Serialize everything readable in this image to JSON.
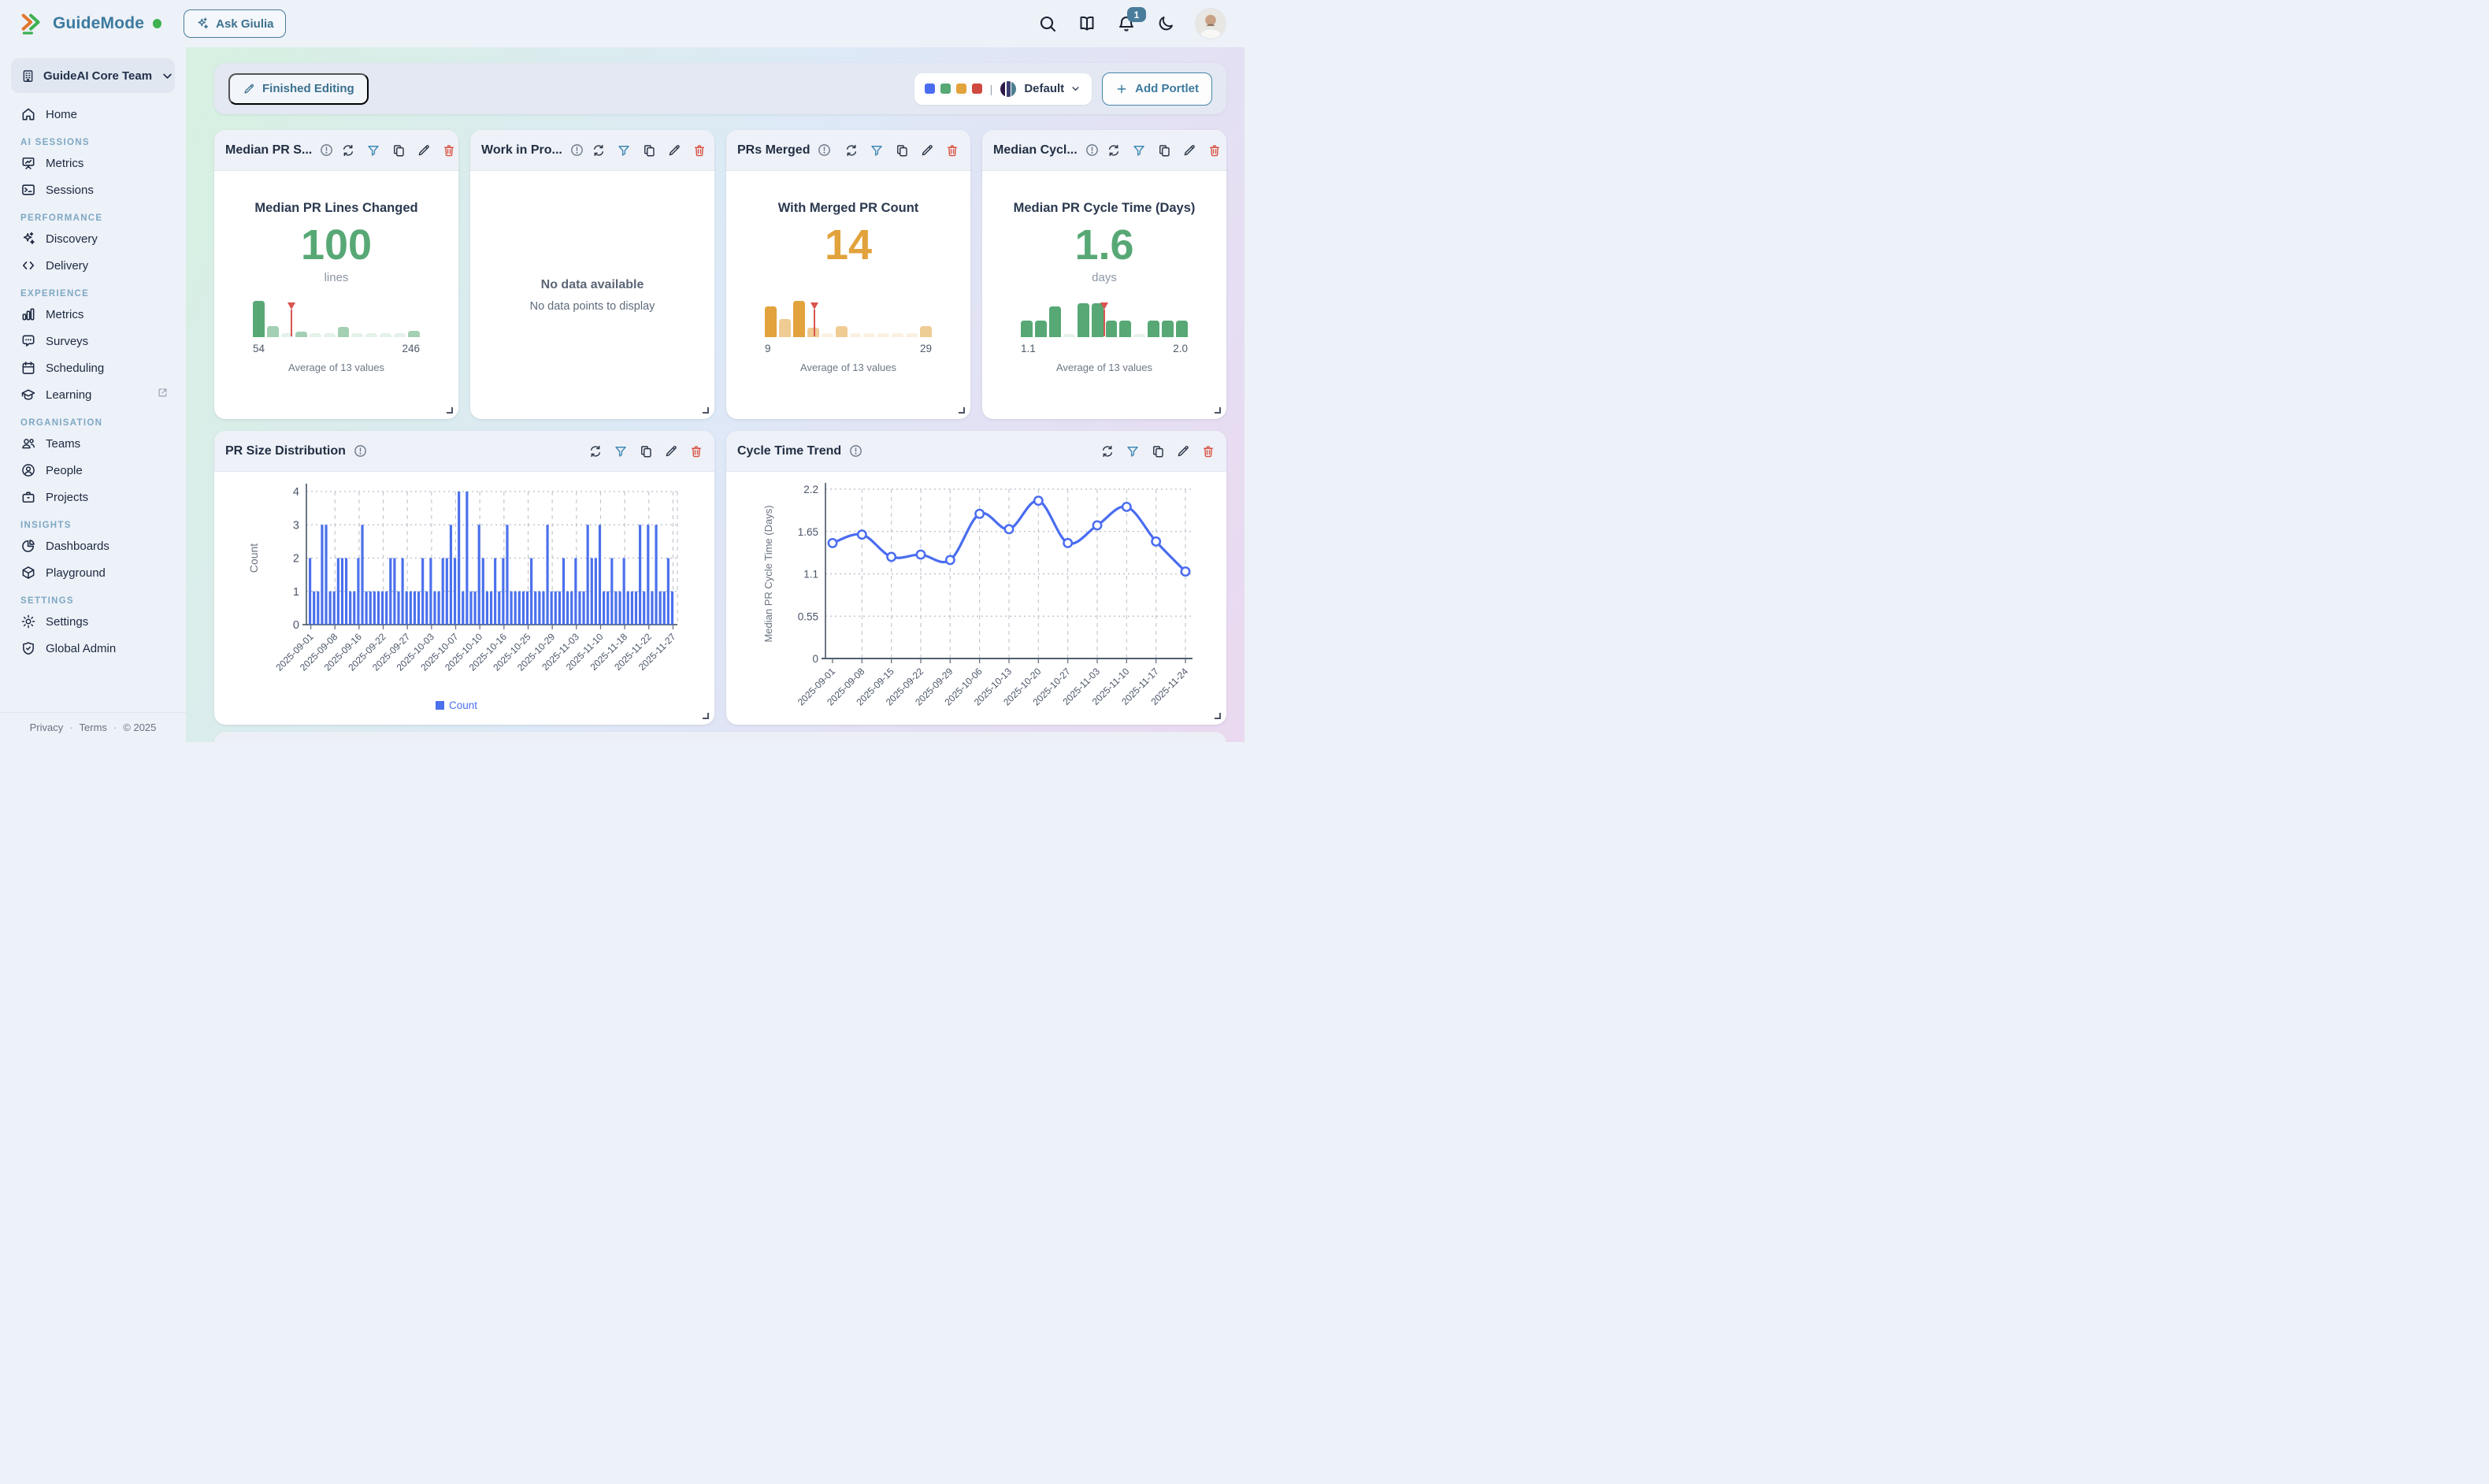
{
  "header": {
    "brand": "GuideMode",
    "ask_label": "Ask Giulia",
    "notification_badge": "1",
    "accent_blue": "#3c7aa0",
    "logo_orange": "#e0772c",
    "logo_green": "#3cb14e"
  },
  "sidebar": {
    "team": "GuideAI Core Team",
    "home": {
      "label": "Home",
      "icon": "home-icon"
    },
    "sections": [
      {
        "title": "AI SESSIONS",
        "items": [
          {
            "label": "Metrics",
            "icon": "board"
          },
          {
            "label": "Sessions",
            "icon": "terminal"
          }
        ]
      },
      {
        "title": "PERFORMANCE",
        "items": [
          {
            "label": "Discovery",
            "icon": "sparkles"
          },
          {
            "label": "Delivery",
            "icon": "code"
          }
        ]
      },
      {
        "title": "EXPERIENCE",
        "items": [
          {
            "label": "Metrics",
            "icon": "bars"
          },
          {
            "label": "Surveys",
            "icon": "chat"
          },
          {
            "label": "Scheduling",
            "icon": "calendar"
          },
          {
            "label": "Learning",
            "icon": "grad",
            "external": true
          }
        ]
      },
      {
        "title": "ORGANISATION",
        "items": [
          {
            "label": "Teams",
            "icon": "users"
          },
          {
            "label": "People",
            "icon": "person"
          },
          {
            "label": "Projects",
            "icon": "briefcase"
          }
        ]
      },
      {
        "title": "INSIGHTS",
        "items": [
          {
            "label": "Dashboards",
            "icon": "pie"
          },
          {
            "label": "Playground",
            "icon": "cube"
          }
        ]
      },
      {
        "title": "SETTINGS",
        "items": [
          {
            "label": "Settings",
            "icon": "gear"
          },
          {
            "label": "Global Admin",
            "icon": "shield"
          }
        ]
      }
    ],
    "footer": {
      "privacy": "Privacy",
      "terms": "Terms",
      "copyright": "© 2025",
      "dot": "·"
    }
  },
  "toolbar": {
    "finished_editing": "Finished Editing",
    "palette_swatches": [
      "#4a6cf0",
      "#57a875",
      "#e2a23c",
      "#d0493f"
    ],
    "palette_separator": "|",
    "palette_pie": [
      "#2e1a47",
      "#3d3f72",
      "#4e7f8e"
    ],
    "palette_name": "Default",
    "add_portlet": "Add Portlet"
  },
  "portlets": [
    {
      "title": "Median PR S...",
      "type": "kpi",
      "kpi": {
        "label": "Median PR Lines Changed",
        "value": "100",
        "unit": "lines",
        "color": "#57a875",
        "min": "54",
        "max": "246",
        "avg": "Average of 13 values",
        "marker_pct": 23,
        "bars": [
          {
            "h": 1,
            "t": "s"
          },
          {
            "h": 0.3,
            "t": "m"
          },
          {
            "h": 0.1,
            "t": "f"
          },
          {
            "h": 0.14,
            "t": "m"
          },
          {
            "h": 0.1,
            "t": "f"
          },
          {
            "h": 0.1,
            "t": "f"
          },
          {
            "h": 0.28,
            "t": "m"
          },
          {
            "h": 0.1,
            "t": "f"
          },
          {
            "h": 0.1,
            "t": "f"
          },
          {
            "h": 0.1,
            "t": "f"
          },
          {
            "h": 0.1,
            "t": "f"
          },
          {
            "h": 0.16,
            "t": "m"
          }
        ]
      }
    },
    {
      "title": "Work in Pro...",
      "type": "empty",
      "empty": {
        "title": "No data available",
        "subtitle": "No data points to display"
      }
    },
    {
      "title": "PRs Merged",
      "type": "kpi",
      "kpi": {
        "label": "With Merged PR Count",
        "value": "14",
        "unit": "",
        "color": "#e2a23c",
        "min": "9",
        "max": "29",
        "avg": "Average of 13 values",
        "marker_pct": 29.5,
        "bars": [
          {
            "h": 0.85,
            "t": "s"
          },
          {
            "h": 0.5,
            "t": "m"
          },
          {
            "h": 1,
            "t": "s"
          },
          {
            "h": 0.25,
            "t": "m"
          },
          {
            "h": 0.1,
            "t": "f"
          },
          {
            "h": 0.3,
            "t": "m"
          },
          {
            "h": 0.1,
            "t": "f"
          },
          {
            "h": 0.1,
            "t": "f"
          },
          {
            "h": 0.1,
            "t": "f"
          },
          {
            "h": 0.1,
            "t": "f"
          },
          {
            "h": 0.1,
            "t": "f"
          },
          {
            "h": 0.3,
            "t": "m"
          }
        ]
      }
    },
    {
      "title": "Median Cycl...",
      "type": "kpi",
      "kpi": {
        "label": "Median PR Cycle Time (Days)",
        "value": "1.6",
        "unit": "days",
        "color": "#57a875",
        "min": "1.1",
        "max": "2.0",
        "avg": "Average of 13 values",
        "marker_pct": 50,
        "bars": [
          {
            "h": 0.45,
            "t": "s"
          },
          {
            "h": 0.45,
            "t": "s"
          },
          {
            "h": 0.85,
            "t": "s"
          },
          {
            "h": 0.08,
            "t": "f"
          },
          {
            "h": 0.93,
            "t": "s"
          },
          {
            "h": 0.93,
            "t": "s"
          },
          {
            "h": 0.45,
            "t": "s"
          },
          {
            "h": 0.45,
            "t": "s"
          },
          {
            "h": 0.08,
            "t": "f"
          },
          {
            "h": 0.45,
            "t": "s"
          },
          {
            "h": 0.45,
            "t": "s"
          },
          {
            "h": 0.45,
            "t": "s"
          }
        ]
      }
    }
  ],
  "chart_portlets": [
    {
      "title": "PR Size Distribution"
    },
    {
      "title": "Cycle Time Trend"
    }
  ],
  "chart_data": [
    {
      "type": "bar",
      "title": "PR Size Distribution",
      "xlabel": "",
      "ylabel": "Count",
      "ylim": [
        0,
        4
      ],
      "yticks": [
        0,
        1,
        2,
        3,
        4
      ],
      "grid": true,
      "legend": [
        "Count"
      ],
      "legend_position": "bottom",
      "color": "#4a70ec",
      "tick_labels": [
        "2025-09-01",
        "2025-09-08",
        "2025-09-16",
        "2025-09-22",
        "2025-09-27",
        "2025-10-03",
        "2025-10-07",
        "2025-10-10",
        "2025-10-16",
        "2025-10-25",
        "2025-10-29",
        "2025-11-03",
        "2025-11-10",
        "2025-11-18",
        "2025-11-22",
        "2025-11-27"
      ],
      "values": [
        2,
        1,
        1,
        3,
        3,
        1,
        1,
        2,
        2,
        2,
        1,
        1,
        2,
        3,
        1,
        1,
        1,
        1,
        1,
        1,
        2,
        2,
        1,
        2,
        1,
        1,
        1,
        1,
        2,
        1,
        2,
        1,
        1,
        2,
        2,
        3,
        2,
        4,
        1,
        4,
        1,
        1,
        3,
        2,
        1,
        1,
        2,
        1,
        2,
        3,
        1,
        1,
        1,
        1,
        1,
        2,
        1,
        1,
        1,
        3,
        1,
        1,
        1,
        2,
        1,
        1,
        2,
        1,
        1,
        3,
        2,
        2,
        3,
        1,
        1,
        2,
        1,
        1,
        2,
        1,
        1,
        1,
        3,
        1,
        3,
        1,
        3,
        1,
        1,
        2,
        1
      ]
    },
    {
      "type": "line",
      "title": "Cycle Time Trend",
      "xlabel": "",
      "ylabel": "Median PR Cycle Time (Days)",
      "ylim": [
        0,
        2.2
      ],
      "yticks": [
        0,
        0.55,
        1.1,
        1.65,
        2.2
      ],
      "grid": true,
      "color": "#4a6cf0",
      "x": [
        "2025-09-01",
        "2025-09-08",
        "2025-09-15",
        "2025-09-22",
        "2025-09-29",
        "2025-10-06",
        "2025-10-13",
        "2025-10-20",
        "2025-10-27",
        "2025-11-03",
        "2025-11-10",
        "2025-11-17",
        "2025-11-24"
      ],
      "values": [
        1.5,
        1.61,
        1.32,
        1.35,
        1.28,
        1.88,
        1.68,
        2.05,
        1.5,
        1.73,
        1.97,
        1.52,
        1.13
      ]
    }
  ]
}
